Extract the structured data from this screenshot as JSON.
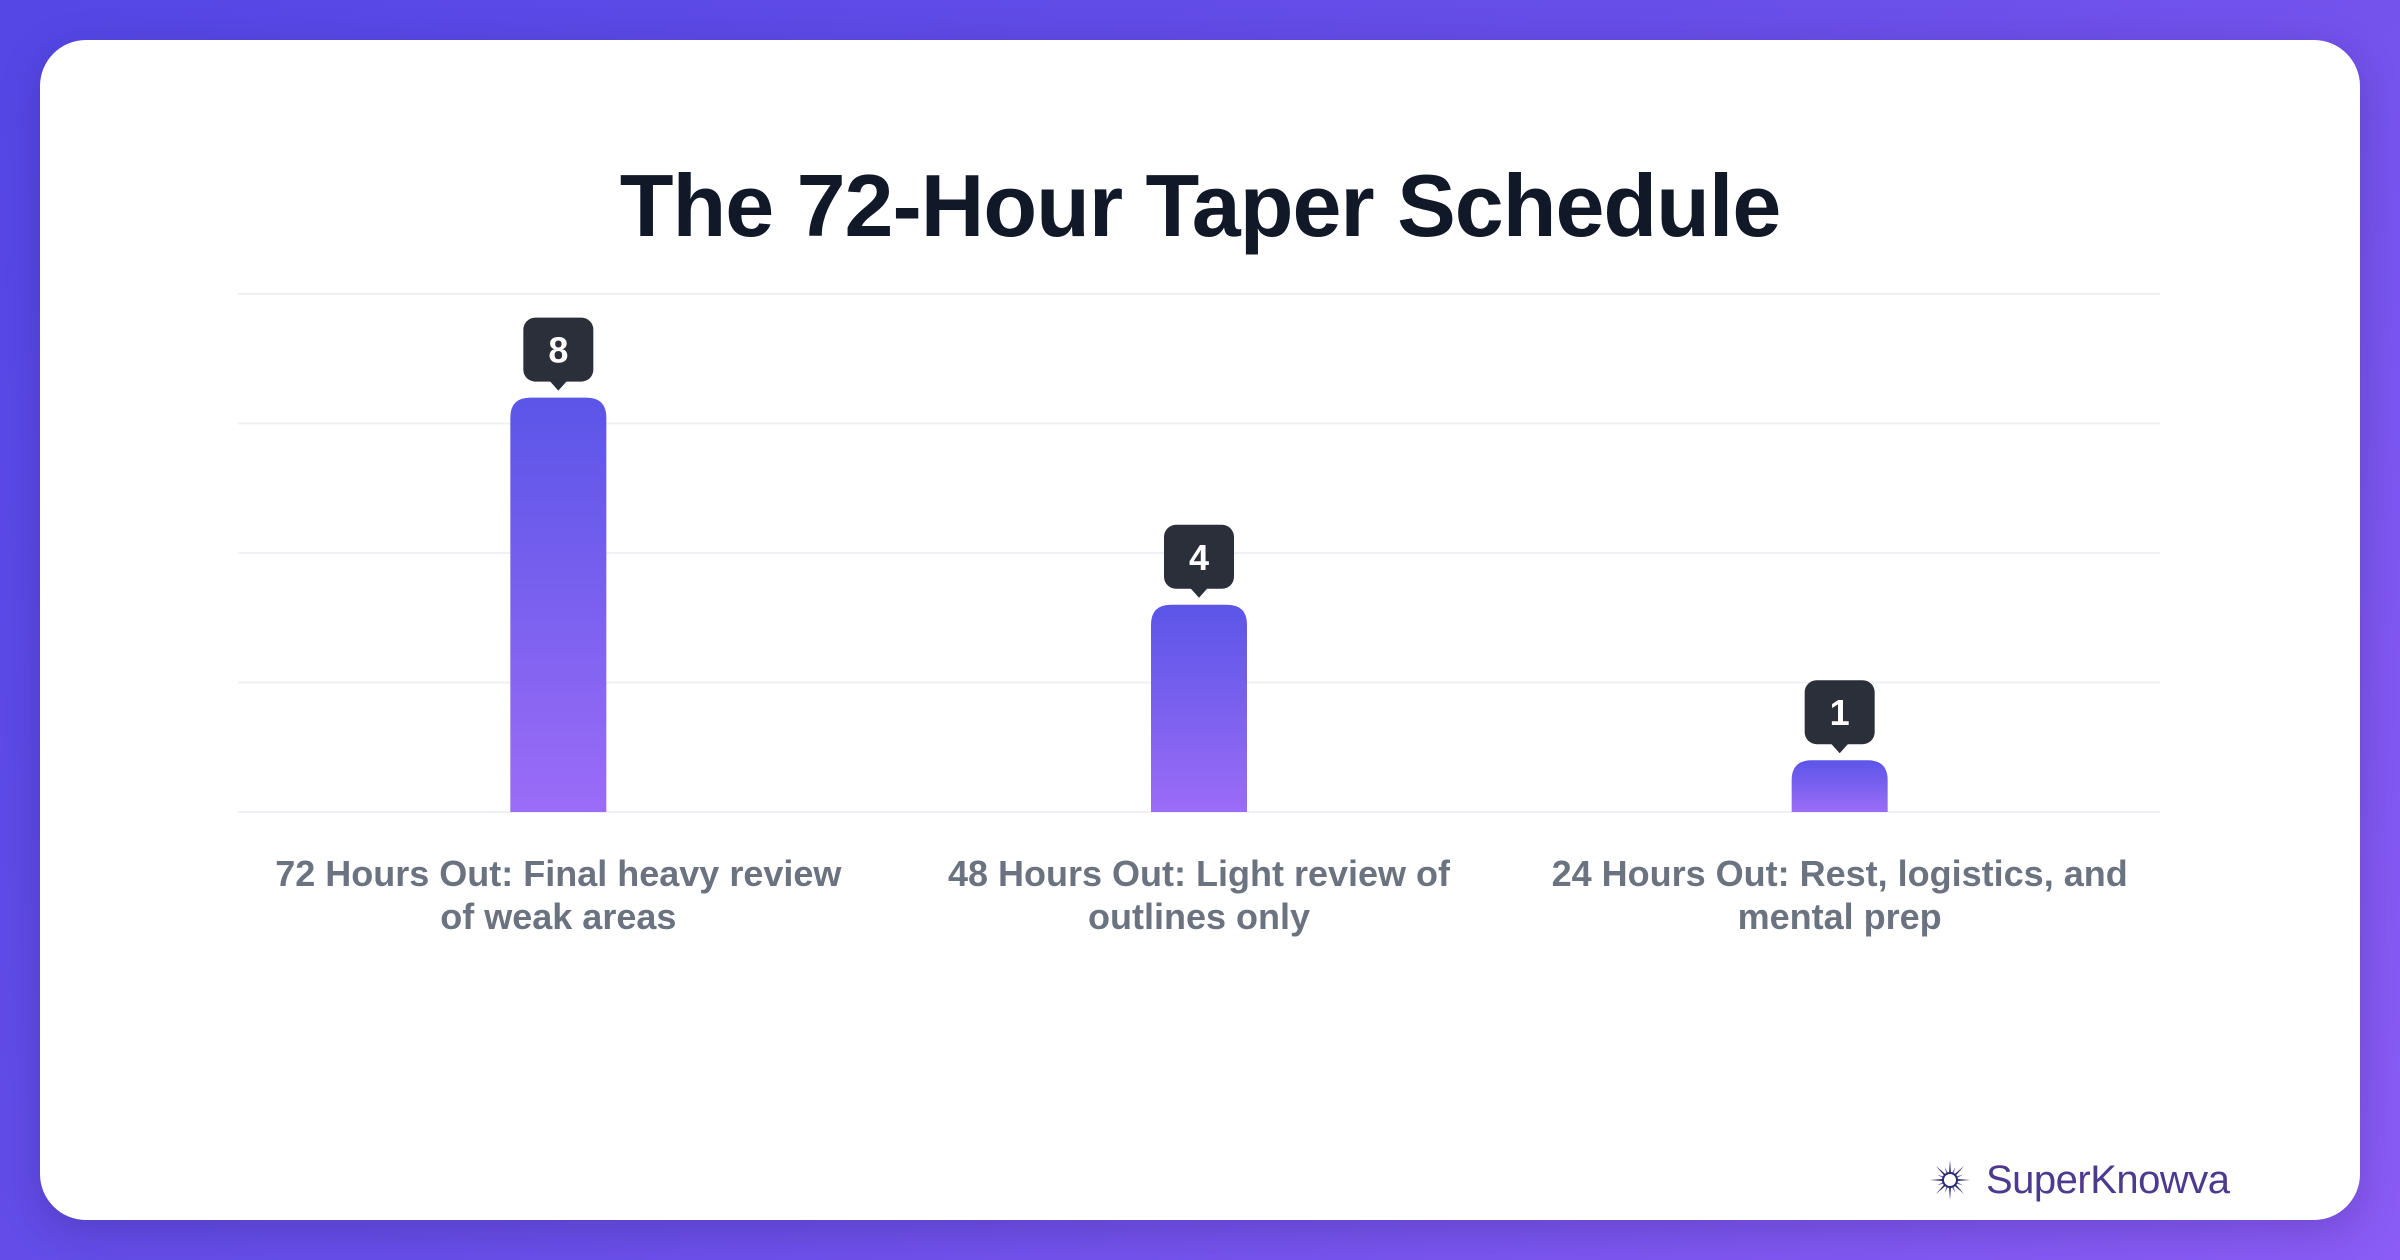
{
  "chart_data": {
    "type": "bar",
    "title": "The 72-Hour Taper Schedule",
    "categories": [
      "72 Hours Out: Final heavy review of weak areas",
      "48 Hours Out: Light review of outlines only",
      "24 Hours Out: Rest, logistics, and mental prep"
    ],
    "values": [
      8,
      4,
      1
    ],
    "value_labels": [
      "8",
      "4",
      "1"
    ],
    "ylim": [
      0,
      10
    ],
    "grid": true,
    "colors": {
      "bar_top": "#5b55e8",
      "bar_bottom": "#9b6cf7",
      "label_bg": "#2a2f3a",
      "grid": "#eef0f3"
    }
  },
  "brand": {
    "name": "SuperKnowva",
    "icon": "starburst-logo-icon"
  }
}
